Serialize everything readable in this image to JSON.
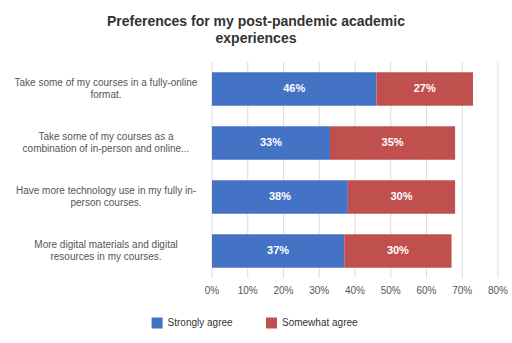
{
  "chart_data": {
    "type": "bar",
    "orientation": "horizontal",
    "stacked": true,
    "title": "Preferences for my post-pandemic academic\nexperiences",
    "categories": [
      "Take some of my courses in a fully-online\nformat.",
      "Take some of my courses as a\ncombination of in-person and online...",
      "Have more technology use in my fully in-\nperson courses.",
      "More digital materials and digital\nresources in my courses."
    ],
    "series": [
      {
        "name": "Strongly agree",
        "color": "#4472C4",
        "values": [
          46,
          33,
          38,
          37
        ],
        "value_labels": [
          "46%",
          "33%",
          "38%",
          "37%"
        ]
      },
      {
        "name": "Somewhat agree",
        "color": "#C0504D",
        "values": [
          27,
          35,
          30,
          30
        ],
        "value_labels": [
          "27%",
          "35%",
          "30%",
          "30%"
        ]
      }
    ],
    "xlim": [
      0,
      80
    ],
    "xticks": [
      {
        "value": 0,
        "label": "0%"
      },
      {
        "value": 10,
        "label": "10%"
      },
      {
        "value": 20,
        "label": "20%"
      },
      {
        "value": 30,
        "label": "30%"
      },
      {
        "value": 40,
        "label": "40%"
      },
      {
        "value": 50,
        "label": "50%"
      },
      {
        "value": 60,
        "label": "60%"
      },
      {
        "value": 70,
        "label": "70%"
      },
      {
        "value": 80,
        "label": "80%"
      }
    ],
    "grid": true,
    "data_labels": true,
    "legend": "bottom"
  }
}
